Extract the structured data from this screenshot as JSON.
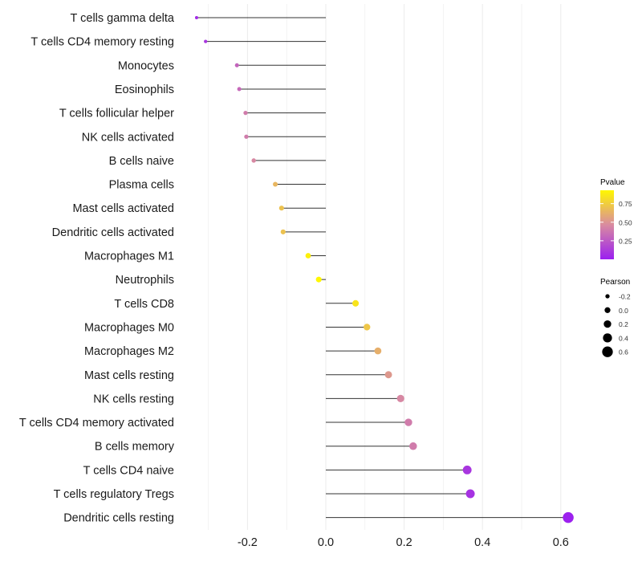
{
  "chart_data": {
    "type": "lollipop",
    "title": "",
    "xlabel": "",
    "ylabel": "",
    "xlim": [
      -0.36,
      0.66
    ],
    "x_ticks": [
      -0.2,
      0.0,
      0.2,
      0.4,
      0.6
    ],
    "x_tick_labels": [
      "-0.2",
      "0.0",
      "0.2",
      "0.4",
      "0.6"
    ],
    "grid": true,
    "categories": [
      "T cells gamma delta",
      "T cells CD4 memory resting",
      "Monocytes",
      "Eosinophils",
      "T cells follicular helper",
      "NK cells activated",
      "B cells naive",
      "Plasma cells",
      "Mast cells activated",
      "Dendritic cells activated",
      "Macrophages M1",
      "Neutrophils",
      "T cells CD8",
      "Macrophages M0",
      "Macrophages M2",
      "Mast cells resting",
      "NK cells resting",
      "T cells CD4 memory activated",
      "B cells memory",
      "T cells CD4 naive",
      "T cells regulatory  Tregs",
      "Dendritic cells resting"
    ],
    "pearson": [
      -0.33,
      -0.307,
      -0.227,
      -0.221,
      -0.205,
      -0.203,
      -0.184,
      -0.129,
      -0.113,
      -0.109,
      -0.045,
      -0.018,
      0.076,
      0.105,
      0.133,
      0.16,
      0.191,
      0.211,
      0.223,
      0.361,
      0.369,
      0.619
    ],
    "pvalue": [
      0.05,
      0.1,
      0.3,
      0.32,
      0.4,
      0.4,
      0.45,
      0.65,
      0.7,
      0.7,
      0.9,
      0.95,
      0.85,
      0.72,
      0.62,
      0.52,
      0.45,
      0.4,
      0.4,
      0.1,
      0.08,
      0.01
    ],
    "legend": {
      "color_title": "Pvalue",
      "color_ticks": [
        "0.75",
        "0.50",
        "0.25"
      ],
      "color_tick_values": [
        0.75,
        0.5,
        0.25
      ],
      "color_range": [
        0,
        0.93
      ],
      "size_title": "Pearson",
      "size_labels": [
        "-0.2",
        "0.0",
        "0.2",
        "0.4",
        "0.6"
      ],
      "size_values": [
        -0.2,
        0.0,
        0.2,
        0.4,
        0.6
      ],
      "placement": "right"
    },
    "colors": {
      "low": "#9B1FF0",
      "mid": "#D98BA0",
      "high": "#FFF700",
      "stem": "#000000",
      "grid": "#EBEBEB"
    }
  }
}
